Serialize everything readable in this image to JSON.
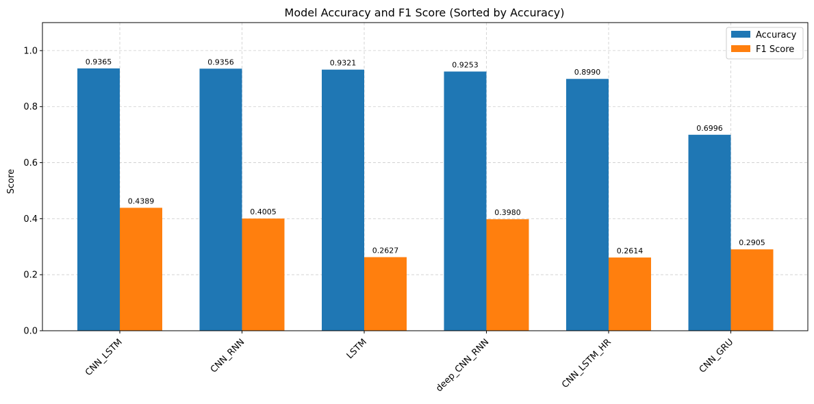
{
  "chart_data": {
    "type": "bar",
    "title": "Model Accuracy and F1 Score (Sorted by Accuracy)",
    "xlabel": "",
    "ylabel": "Score",
    "ylim": [
      0,
      1.1
    ],
    "yticks": [
      "0.0",
      "0.2",
      "0.4",
      "0.6",
      "0.8",
      "1.0"
    ],
    "categories": [
      "CNN_LSTM",
      "CNN_RNN",
      "LSTM",
      "deep_CNN_RNN",
      "CNN_LSTM_HR",
      "CNN_GRU"
    ],
    "series": [
      {
        "name": "Accuracy",
        "color": "#1f77b4",
        "values": [
          0.9365,
          0.9356,
          0.9321,
          0.9253,
          0.899,
          0.6996
        ],
        "labels": [
          "0.9365",
          "0.9356",
          "0.9321",
          "0.9253",
          "0.8990",
          "0.6996"
        ]
      },
      {
        "name": "F1 Score",
        "color": "#ff7f0e",
        "values": [
          0.4389,
          0.4005,
          0.2627,
          0.398,
          0.2614,
          0.2905
        ],
        "labels": [
          "0.4389",
          "0.4005",
          "0.2627",
          "0.3980",
          "0.2614",
          "0.2905"
        ]
      }
    ],
    "grid": true,
    "legend_position": "top-right"
  }
}
